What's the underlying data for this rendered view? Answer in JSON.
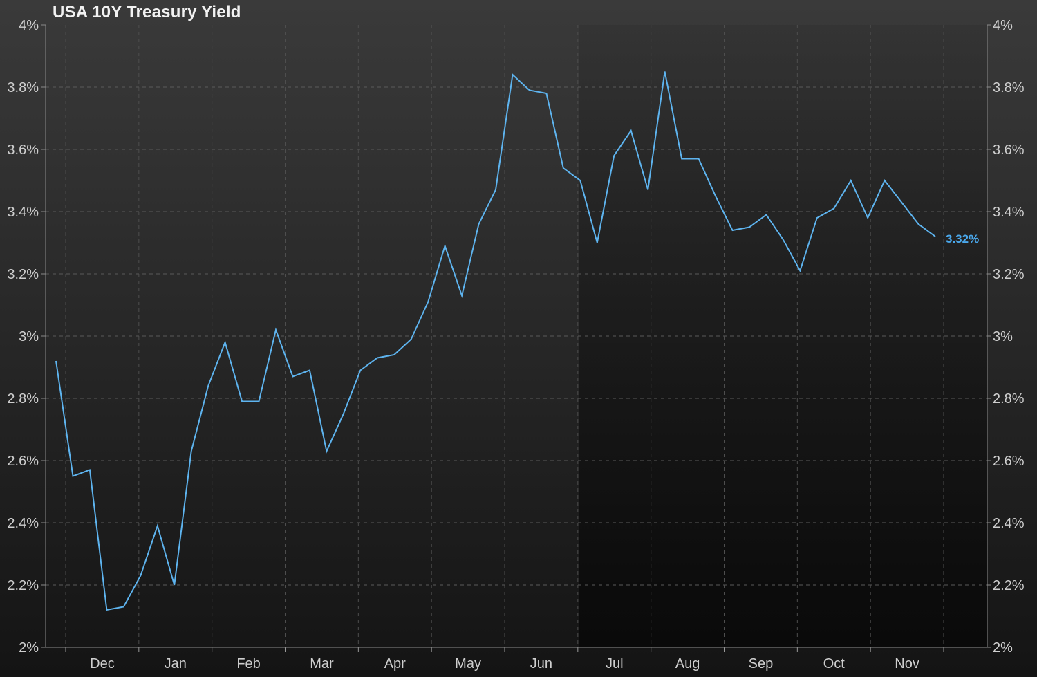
{
  "chart_data": {
    "type": "line",
    "title": "USA 10Y Treasury Yield",
    "xlabel": "",
    "ylabel": "",
    "ylim": [
      2.0,
      4.0
    ],
    "y_ticks": [
      "2%",
      "2.2%",
      "2.4%",
      "2.6%",
      "2.8%",
      "3%",
      "3.2%",
      "3.4%",
      "3.6%",
      "3.8%",
      "4%"
    ],
    "y_tick_values": [
      2.0,
      2.2,
      2.4,
      2.6,
      2.8,
      3.0,
      3.2,
      3.4,
      3.6,
      3.8,
      4.0
    ],
    "x_tick_labels": [
      "Dec",
      "Jan",
      "Feb",
      "Mar",
      "Apr",
      "May",
      "Jun",
      "Jul",
      "Aug",
      "Sep",
      "Oct",
      "Nov"
    ],
    "y_axis_sides": "left-and-right",
    "grid": true,
    "legend": "none",
    "series": [
      {
        "values": [
          2.92,
          2.55,
          2.57,
          2.12,
          2.13,
          2.23,
          2.39,
          2.2,
          2.63,
          2.84,
          2.98,
          2.79,
          2.79,
          3.02,
          2.87,
          2.89,
          2.63,
          2.75,
          2.89,
          2.93,
          2.94,
          2.99,
          3.11,
          3.29,
          3.13,
          3.36,
          3.47,
          3.84,
          3.79,
          3.78,
          3.54,
          3.5,
          3.3,
          3.58,
          3.66,
          3.47,
          3.85,
          3.57,
          3.57,
          3.45,
          3.34,
          3.35,
          3.39,
          3.31,
          3.21,
          3.38,
          3.41,
          3.5,
          3.38,
          3.5,
          3.43,
          3.36,
          3.32
        ],
        "color": "#5eb4ef"
      }
    ],
    "last_value_label": "3.32%",
    "last_value_color": "#4aa8ec"
  }
}
